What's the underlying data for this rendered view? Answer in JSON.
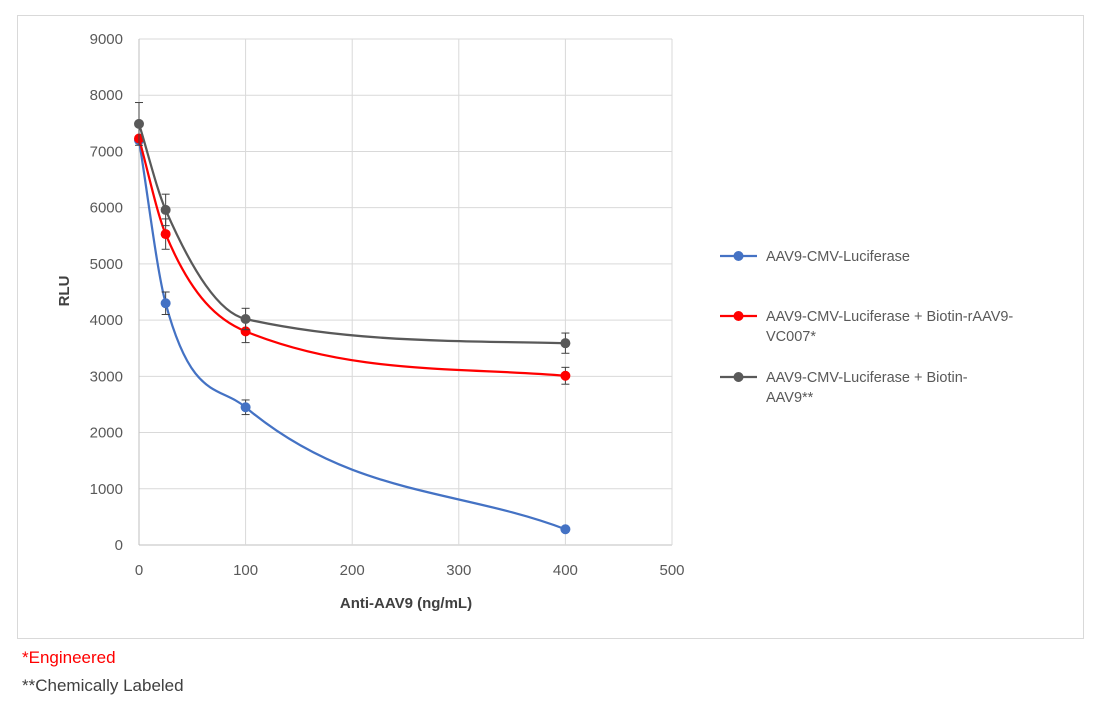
{
  "chart_data": {
    "type": "line",
    "title": "",
    "xlabel": "Anti-AAV9 (ng/mL)",
    "ylabel": "RLU",
    "xlim": [
      0,
      500
    ],
    "ylim": [
      0,
      9000
    ],
    "xticks": [
      0,
      100,
      200,
      300,
      400,
      500
    ],
    "yticks": [
      0,
      1000,
      2000,
      3000,
      4000,
      5000,
      6000,
      7000,
      8000,
      9000
    ],
    "grid": true,
    "smooth": true,
    "legend_position": "right",
    "series": [
      {
        "name": "AAV9-CMV-Luciferase",
        "legend_lines": [
          "AAV9-CMV-Luciferase"
        ],
        "color": "#4472c4",
        "x": [
          0,
          25,
          100,
          400
        ],
        "y": [
          7200,
          4300,
          2450,
          280
        ],
        "err": [
          0,
          200,
          130,
          40
        ]
      },
      {
        "name": "AAV9-CMV-Luciferase + Biotin-rAAV9-VC007*",
        "legend_lines": [
          "AAV9-CMV-Luciferase + Biotin-rAAV9-",
          "VC007*"
        ],
        "color": "#ff0000",
        "x": [
          0,
          25,
          100,
          400
        ],
        "y": [
          7230,
          5530,
          3800,
          3010
        ],
        "err": [
          0,
          270,
          200,
          150
        ]
      },
      {
        "name": "AAV9-CMV-Luciferase + Biotin-AAV9**",
        "legend_lines": [
          "AAV9-CMV-Luciferase + Biotin-",
          "AAV9**"
        ],
        "color": "#595959",
        "x": [
          0,
          25,
          100,
          400
        ],
        "y": [
          7490,
          5960,
          4020,
          3590
        ],
        "err": [
          380,
          280,
          190,
          180
        ]
      }
    ]
  },
  "footnotes": {
    "engineered": "*Engineered",
    "chemically_labeled": "**Chemically Labeled"
  }
}
